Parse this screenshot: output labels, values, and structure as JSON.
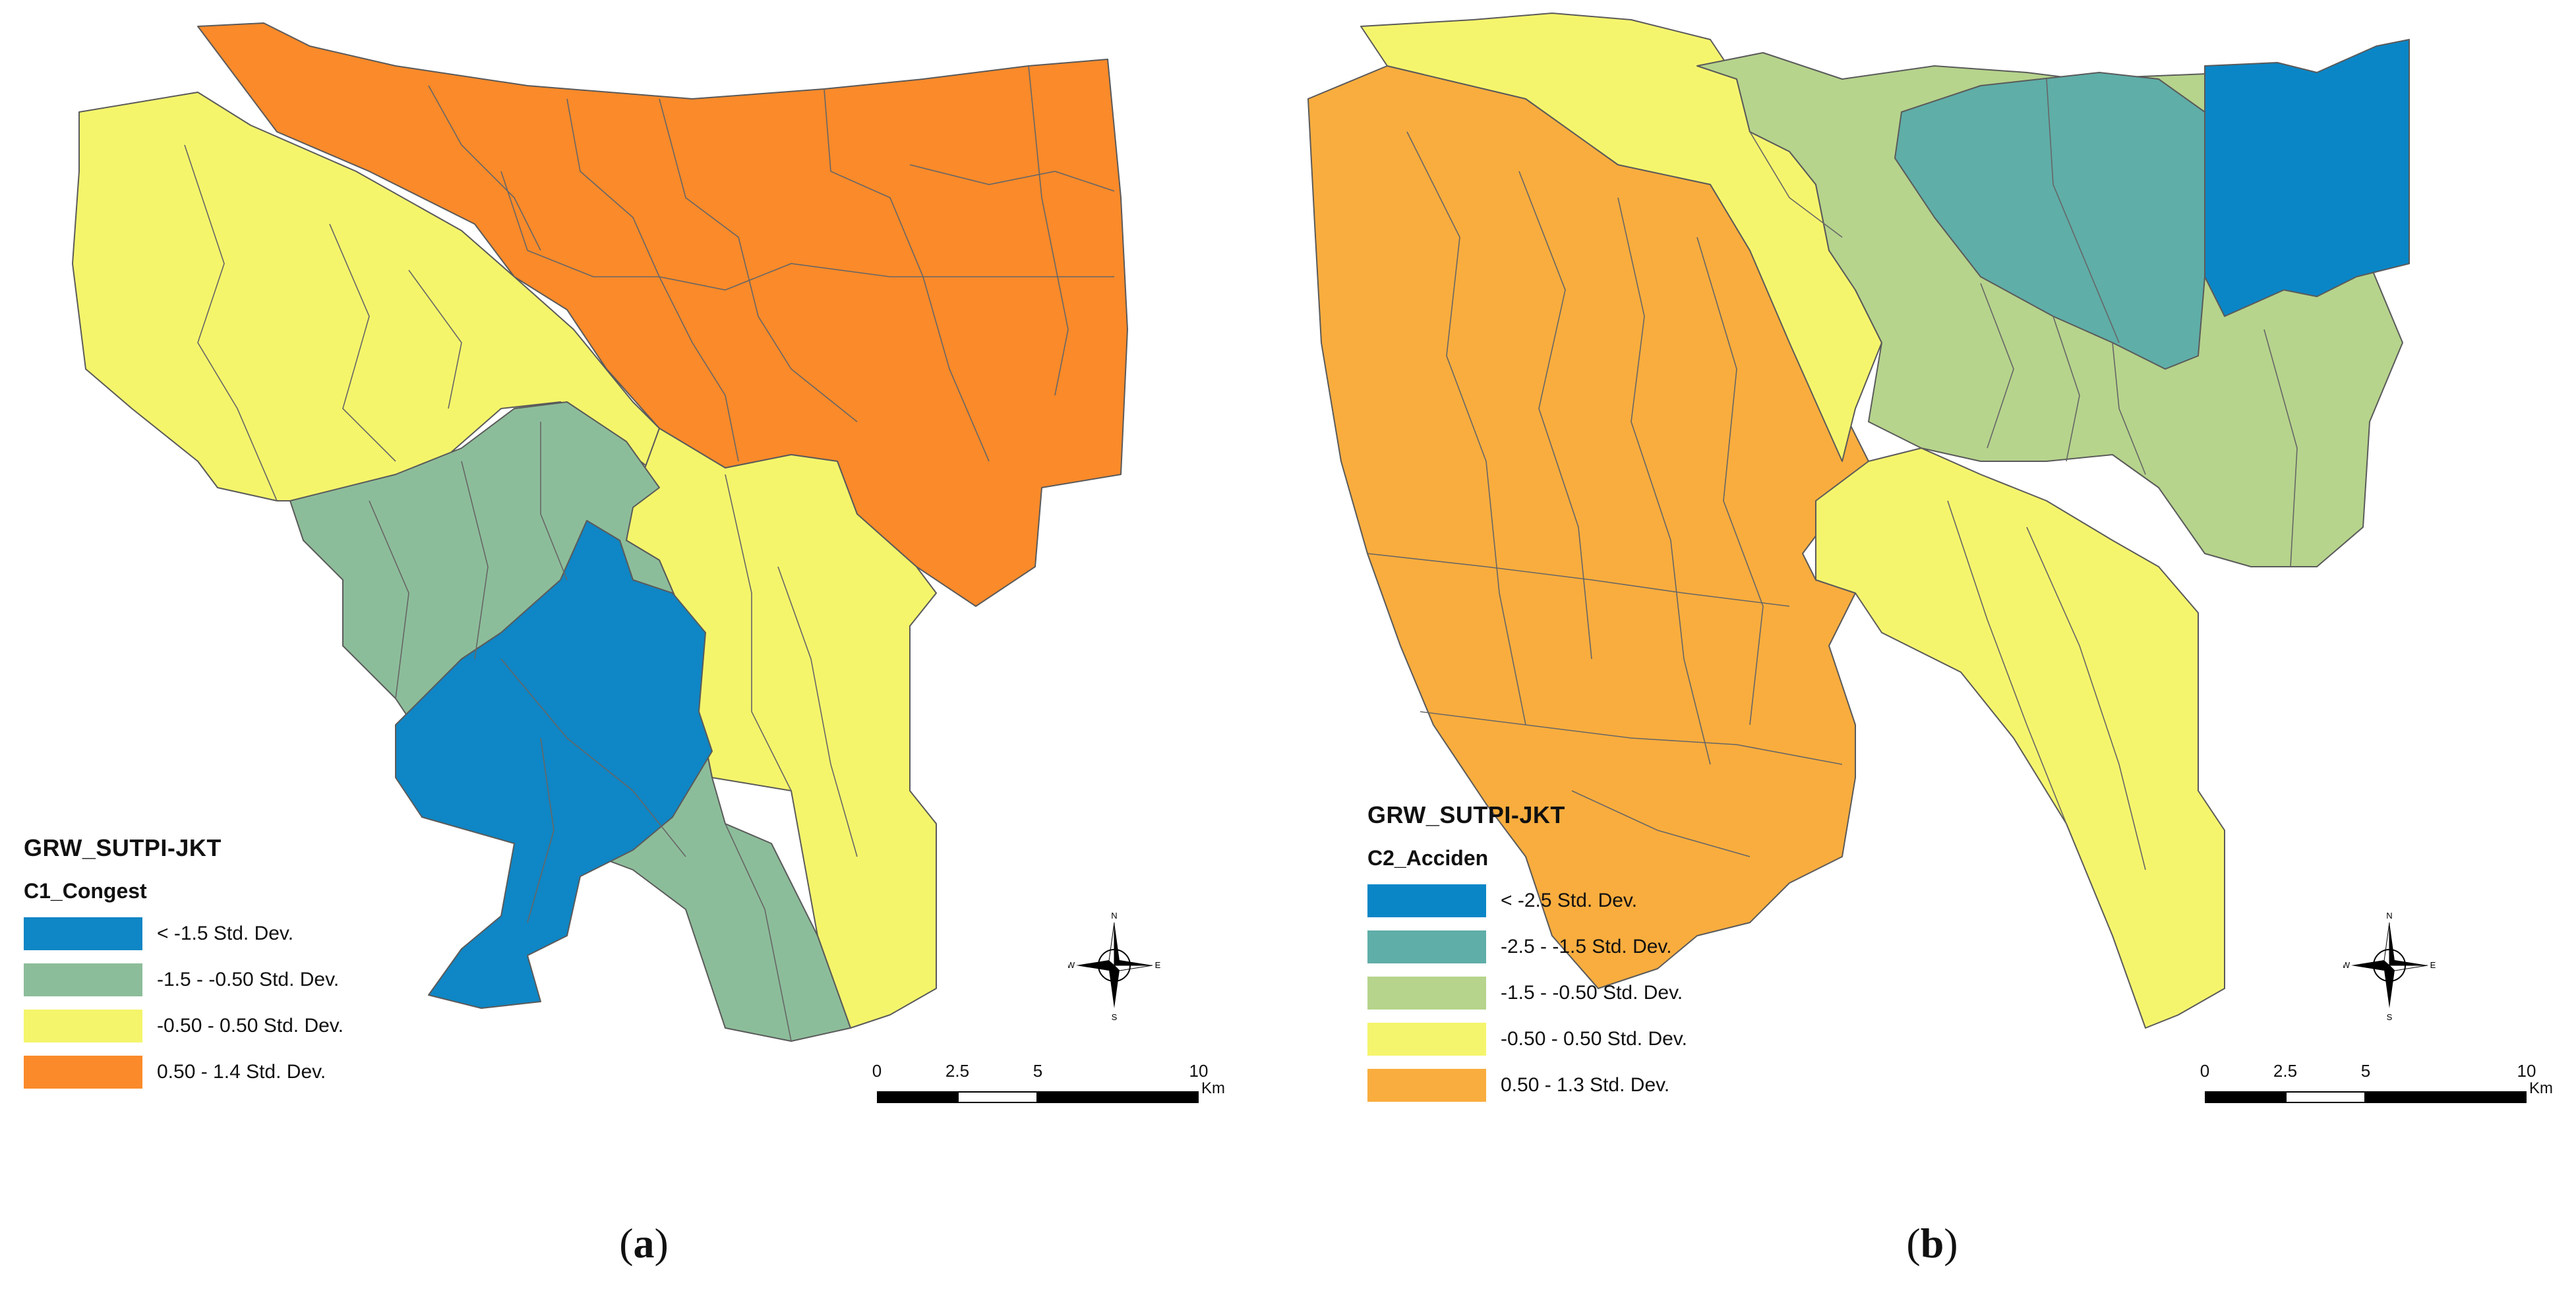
{
  "panels": [
    {
      "id": "a",
      "caption_open": "(",
      "caption_letter": "a",
      "caption_close": ")",
      "legend": {
        "title": "GRW_SUTPI-JKT",
        "field": "C1_Congest",
        "classes": [
          {
            "label": "< -1.5 Std. Dev.",
            "color": "#0f86c5"
          },
          {
            "label": "-1.5 - -0.50 Std. Dev.",
            "color": "#8cbd9a"
          },
          {
            "label": "-0.50 - 0.50 Std. Dev.",
            "color": "#f4f56b"
          },
          {
            "label": "0.50 - 1.4 Std. Dev.",
            "color": "#fa8a2a"
          }
        ]
      },
      "scale": {
        "ticks": [
          "0",
          "2.5",
          "5",
          "10"
        ],
        "units": "Km"
      },
      "compass": {
        "n": "N",
        "s": "S",
        "e": "E",
        "w": "W"
      }
    },
    {
      "id": "b",
      "caption_open": "(",
      "caption_letter": "b",
      "caption_close": ")",
      "legend": {
        "title": "GRW_SUTPI-JKT",
        "field": "C2_Acciden",
        "classes": [
          {
            "label": "< -2.5 Std. Dev.",
            "color": "#0a86c7"
          },
          {
            "label": "-2.5 - -1.5 Std. Dev.",
            "color": "#5faea8"
          },
          {
            "label": "-1.5 - -0.50 Std. Dev.",
            "color": "#b6d48c"
          },
          {
            "label": "-0.50 - 0.50 Std. Dev.",
            "color": "#f5f56d"
          },
          {
            "label": "0.50 - 1.3 Std. Dev.",
            "color": "#f9ad3e"
          }
        ]
      },
      "scale": {
        "ticks": [
          "0",
          "2.5",
          "5",
          "10"
        ],
        "units": "Km"
      },
      "compass": {
        "n": "N",
        "s": "S",
        "e": "E",
        "w": "W"
      }
    }
  ]
}
